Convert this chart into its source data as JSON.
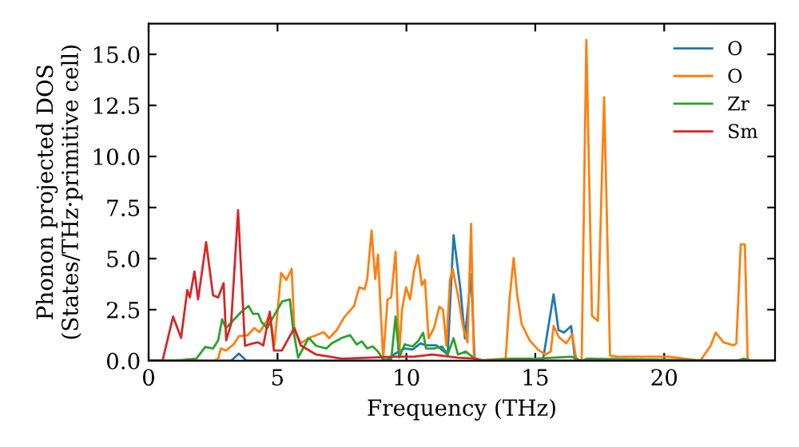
{
  "chart_data": {
    "type": "line",
    "xlabel": "Frequency (THz)",
    "ylabel": "Phonon projected DOS\n(States/THz·primitive cell)",
    "xlim": [
      0,
      24.3
    ],
    "ylim": [
      0,
      16.5
    ],
    "xticks": [
      0,
      5,
      10,
      15,
      20
    ],
    "yticks": [
      {
        "value": 0,
        "label": "0.0"
      },
      {
        "value": 2.5,
        "label": "2.5"
      },
      {
        "value": 5,
        "label": "5.0"
      },
      {
        "value": 7.5,
        "label": "7.5"
      },
      {
        "value": 10,
        "label": "10.0"
      },
      {
        "value": 12.5,
        "label": "12.5"
      },
      {
        "value": 15,
        "label": "15.0"
      }
    ],
    "grid": false,
    "legend": "top right",
    "marker": "none",
    "line_style": "solid",
    "series": [
      {
        "name": "O",
        "color": "#1f77b4",
        "x": [
          0,
          3.2,
          3.5,
          3.8,
          9.2,
          9.5,
          9.93,
          10.24,
          10.55,
          10.76,
          11.17,
          11.6,
          11.83,
          12.1,
          12.27,
          12.51,
          12.65,
          15.3,
          15.71,
          15.9,
          16.12,
          16.39,
          16.55,
          24.3
        ],
        "values": [
          0,
          0,
          0.35,
          0,
          0,
          0.3,
          0.6,
          0.55,
          0.85,
          0.75,
          0.75,
          0.3,
          6.15,
          3.46,
          1.1,
          4.24,
          0,
          0.05,
          3.25,
          1.5,
          1.38,
          1.7,
          0,
          0
        ]
      },
      {
        "name": "O",
        "color": "#ff7f0e",
        "x": [
          0,
          2.5,
          2.7,
          2.8,
          3.0,
          3.3,
          3.5,
          3.84,
          4.1,
          4.3,
          4.57,
          4.7,
          4.88,
          5.14,
          5.34,
          5.55,
          5.65,
          5.9,
          6.2,
          6.5,
          6.8,
          7.0,
          7.3,
          7.6,
          7.97,
          8.17,
          8.38,
          8.48,
          8.65,
          8.79,
          8.9,
          9.0,
          9.1,
          9.27,
          9.41,
          9.58,
          9.72,
          9.83,
          9.99,
          10.14,
          10.3,
          10.45,
          10.6,
          10.72,
          10.86,
          11.07,
          11.28,
          11.42,
          11.55,
          11.69,
          11.79,
          12.0,
          12.2,
          12.37,
          12.51,
          12.62,
          13.85,
          14.0,
          14.16,
          14.3,
          14.47,
          14.78,
          15.1,
          15.4,
          15.6,
          15.71,
          15.92,
          16.2,
          16.43,
          16.6,
          16.8,
          16.98,
          17.2,
          17.43,
          17.67,
          17.9,
          18.2,
          20.2,
          21.4,
          21.8,
          22.0,
          22.3,
          22.7,
          22.8,
          22.97,
          23.13,
          23.24,
          24.3
        ],
        "values": [
          0,
          0,
          0.1,
          0.6,
          0.5,
          0.8,
          1.2,
          1.25,
          1.6,
          1.4,
          1.9,
          2.3,
          0.75,
          4.3,
          3.95,
          4.5,
          1.6,
          0.85,
          1.1,
          1.25,
          1.4,
          1.1,
          1.5,
          2.15,
          2.68,
          3.6,
          3.5,
          4.0,
          6.38,
          4.0,
          5.2,
          2.5,
          0.1,
          3.0,
          3.1,
          5.34,
          0.3,
          2.5,
          3.6,
          3.0,
          4.4,
          5.16,
          3.7,
          3.96,
          1.1,
          1.6,
          2.65,
          2.5,
          0.75,
          3.95,
          4.5,
          3.2,
          1.65,
          0.9,
          6.7,
          0,
          0.1,
          3.0,
          5.02,
          3.2,
          1.8,
          1.0,
          0.55,
          0.3,
          0.45,
          1.7,
          1.15,
          0.85,
          1.3,
          0,
          0,
          15.7,
          2.2,
          1.95,
          12.9,
          0.25,
          0.2,
          0.2,
          0,
          0.73,
          1.38,
          0.9,
          0.75,
          0.85,
          5.7,
          5.7,
          0,
          0
        ]
      },
      {
        "name": "Zr",
        "color": "#2ca02c",
        "x": [
          0,
          1.0,
          1.85,
          2.2,
          2.5,
          2.7,
          2.85,
          3.0,
          3.3,
          3.6,
          3.88,
          4.05,
          4.25,
          4.38,
          4.6,
          4.86,
          5.18,
          5.48,
          5.6,
          5.8,
          6.21,
          6.5,
          6.9,
          7.1,
          7.5,
          7.82,
          8.07,
          8.27,
          8.48,
          8.69,
          8.9,
          9.1,
          9.41,
          9.58,
          9.72,
          9.93,
          10.24,
          10.45,
          10.65,
          10.76,
          11.07,
          11.38,
          11.6,
          11.83,
          12.0,
          12.3,
          12.6,
          12.8,
          14.0,
          15.0,
          16.4,
          16.8,
          17.0,
          22.8,
          23.1,
          23.4,
          24.3
        ],
        "values": [
          0,
          0,
          0.1,
          0.68,
          0.6,
          1.0,
          2.03,
          1.6,
          2.0,
          2.4,
          2.68,
          2.3,
          2.3,
          1.9,
          1.6,
          2.2,
          2.9,
          3.0,
          1.6,
          0.15,
          1.12,
          0.73,
          0.6,
          0.85,
          1.12,
          1.25,
          0.8,
          0.95,
          0.6,
          0.7,
          0.45,
          0.05,
          0.05,
          2.16,
          0.15,
          0.8,
          0.7,
          0.95,
          1.37,
          0.6,
          0.6,
          0.7,
          0.3,
          1.1,
          0.3,
          0.45,
          0.15,
          0,
          0.1,
          0.1,
          0.2,
          0,
          0.1,
          0,
          0.1,
          0,
          0
        ]
      },
      {
        "name": "Sm",
        "color": "#d62728",
        "x": [
          0,
          0.54,
          0.95,
          1.26,
          1.5,
          1.6,
          1.78,
          1.92,
          2.23,
          2.5,
          2.7,
          2.91,
          3.01,
          3.2,
          3.47,
          3.74,
          4.05,
          4.25,
          4.45,
          4.7,
          4.86,
          5.17,
          5.65,
          5.9,
          6.5,
          7.5,
          8.5,
          9.5,
          10.3,
          11.0,
          12.0,
          12.7,
          13.0,
          24.3
        ],
        "values": [
          0,
          0,
          2.16,
          1.12,
          3.46,
          3.1,
          4.37,
          3.0,
          5.8,
          3.2,
          3.1,
          3.8,
          1.0,
          1.8,
          7.37,
          0.73,
          0.85,
          0.9,
          0.75,
          2.4,
          0.5,
          0.5,
          1.6,
          0.75,
          0.3,
          0.1,
          0.15,
          0.2,
          0.2,
          0.3,
          0.15,
          0.1,
          0,
          0
        ]
      }
    ]
  }
}
